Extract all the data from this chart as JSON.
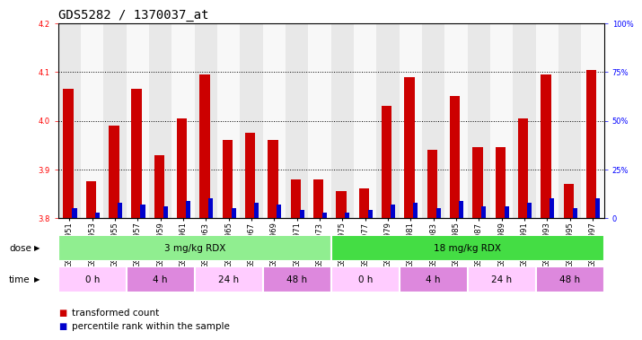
{
  "title": "GDS5282 / 1370037_at",
  "samples": [
    "GSM306951",
    "GSM306953",
    "GSM306955",
    "GSM306957",
    "GSM306959",
    "GSM306961",
    "GSM306963",
    "GSM306965",
    "GSM306967",
    "GSM306969",
    "GSM306971",
    "GSM306973",
    "GSM306975",
    "GSM306977",
    "GSM306979",
    "GSM306981",
    "GSM306983",
    "GSM306985",
    "GSM306987",
    "GSM306989",
    "GSM306991",
    "GSM306993",
    "GSM306995",
    "GSM306997"
  ],
  "red_values": [
    4.065,
    3.875,
    3.99,
    4.065,
    3.93,
    4.005,
    4.095,
    3.96,
    3.975,
    3.96,
    3.88,
    3.88,
    3.855,
    3.86,
    4.03,
    4.09,
    3.94,
    4.05,
    3.945,
    3.945,
    4.005,
    4.095,
    3.87,
    4.105
  ],
  "blue_percentiles": [
    5,
    3,
    8,
    7,
    6,
    9,
    10,
    5,
    8,
    7,
    4,
    3,
    3,
    4,
    7,
    8,
    5,
    9,
    6,
    6,
    8,
    10,
    5,
    10
  ],
  "y_min": 3.8,
  "y_max": 4.2,
  "y_ticks": [
    3.8,
    3.9,
    4.0,
    4.1,
    4.2
  ],
  "y2_ticks_pct": [
    0,
    25,
    50,
    75,
    100
  ],
  "dose_groups": [
    {
      "label": "3 mg/kg RDX",
      "start": 0,
      "end": 12,
      "color": "#90ee90"
    },
    {
      "label": "18 mg/kg RDX",
      "start": 12,
      "end": 24,
      "color": "#44dd44"
    }
  ],
  "time_groups": [
    {
      "label": "0 h",
      "start": 0,
      "end": 3,
      "color": "#ffccff"
    },
    {
      "label": "4 h",
      "start": 3,
      "end": 6,
      "color": "#dd88dd"
    },
    {
      "label": "24 h",
      "start": 6,
      "end": 9,
      "color": "#ffccff"
    },
    {
      "label": "48 h",
      "start": 9,
      "end": 12,
      "color": "#dd88dd"
    },
    {
      "label": "0 h",
      "start": 12,
      "end": 15,
      "color": "#ffccff"
    },
    {
      "label": "4 h",
      "start": 15,
      "end": 18,
      "color": "#dd88dd"
    },
    {
      "label": "24 h",
      "start": 18,
      "end": 21,
      "color": "#ffccff"
    },
    {
      "label": "48 h",
      "start": 21,
      "end": 24,
      "color": "#dd88dd"
    }
  ],
  "bar_color_red": "#cc0000",
  "bar_color_blue": "#0000cc",
  "col_bg_even": "#e8e8e8",
  "col_bg_odd": "#f8f8f8",
  "title_fontsize": 10,
  "tick_fontsize": 6,
  "label_fontsize": 7.5,
  "annot_fontsize": 7.5
}
